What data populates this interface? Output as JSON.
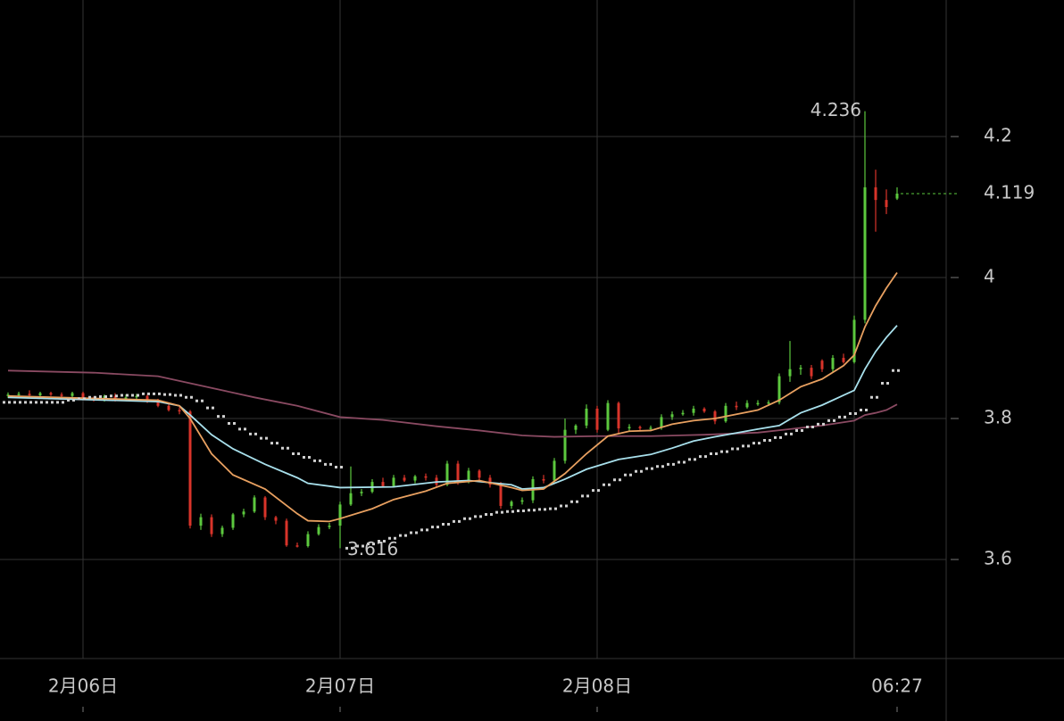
{
  "chart_data": {
    "type": "candlestick",
    "categories": [
      null,
      null,
      null,
      null,
      null,
      null,
      null,
      "2月06日",
      null,
      null,
      null,
      null,
      null,
      null,
      null,
      null,
      null,
      null,
      null,
      null,
      null,
      null,
      null,
      null,
      null,
      null,
      null,
      null,
      null,
      null,
      null,
      "2月07日",
      null,
      null,
      null,
      null,
      null,
      null,
      null,
      null,
      null,
      null,
      null,
      null,
      null,
      null,
      null,
      null,
      null,
      null,
      null,
      null,
      null,
      null,
      null,
      "2月08日",
      null,
      null,
      null,
      null,
      null,
      null,
      null,
      null,
      null,
      null,
      null,
      null,
      null,
      null,
      null,
      null,
      null,
      null,
      null,
      null,
      null,
      null,
      null,
      null,
      null,
      null,
      null,
      "06:27"
    ],
    "open": [
      3.832,
      3.834,
      3.835,
      3.833,
      3.836,
      3.834,
      3.832,
      3.836,
      3.828,
      3.826,
      3.832,
      3.827,
      3.83,
      3.832,
      3.824,
      3.818,
      3.812,
      3.81,
      3.648,
      3.66,
      3.636,
      3.645,
      3.664,
      3.668,
      3.688,
      3.66,
      3.655,
      3.62,
      3.619,
      3.636,
      3.646,
      3.648,
      3.678,
      3.694,
      3.696,
      3.71,
      3.704,
      3.716,
      3.712,
      3.718,
      3.716,
      3.706,
      3.736,
      3.71,
      3.726,
      3.716,
      3.706,
      3.676,
      3.682,
      3.684,
      3.714,
      3.712,
      3.74,
      3.784,
      3.79,
      3.814,
      3.784,
      3.822,
      3.786,
      3.788,
      3.786,
      3.787,
      3.802,
      3.806,
      3.808,
      3.814,
      3.81,
      3.796,
      3.818,
      3.816,
      3.822,
      3.822,
      3.823,
      3.86,
      3.87,
      3.872,
      3.882,
      3.87,
      3.886,
      3.88,
      3.94,
      4.128,
      4.11,
      4.112
    ],
    "high": [
      3.837,
      3.838,
      3.84,
      3.838,
      3.838,
      3.837,
      3.838,
      3.838,
      3.831,
      3.834,
      3.836,
      3.834,
      3.835,
      3.834,
      3.828,
      3.822,
      3.816,
      3.812,
      3.665,
      3.664,
      3.648,
      3.666,
      3.672,
      3.691,
      3.69,
      3.662,
      3.658,
      3.624,
      3.64,
      3.65,
      3.652,
      3.682,
      3.732,
      3.7,
      3.714,
      3.716,
      3.72,
      3.72,
      3.72,
      3.722,
      3.72,
      3.74,
      3.74,
      3.73,
      3.728,
      3.72,
      3.71,
      3.684,
      3.688,
      3.718,
      3.72,
      3.744,
      3.8,
      3.792,
      3.82,
      3.818,
      3.826,
      3.824,
      3.792,
      3.79,
      3.79,
      3.806,
      3.81,
      3.812,
      3.818,
      3.816,
      3.812,
      3.822,
      3.824,
      3.826,
      3.826,
      3.826,
      3.864,
      3.91,
      3.876,
      3.876,
      3.884,
      3.89,
      3.892,
      3.946,
      4.236,
      4.153,
      4.125,
      4.128
    ],
    "low": [
      3.829,
      3.831,
      3.832,
      3.83,
      3.832,
      3.828,
      3.83,
      3.826,
      3.824,
      3.824,
      3.824,
      3.825,
      3.826,
      3.822,
      3.816,
      3.81,
      3.806,
      3.644,
      3.642,
      3.632,
      3.632,
      3.642,
      3.66,
      3.666,
      3.656,
      3.65,
      3.618,
      3.617,
      3.617,
      3.634,
      3.643,
      3.616,
      3.676,
      3.69,
      3.694,
      3.702,
      3.702,
      3.71,
      3.708,
      3.712,
      3.702,
      3.704,
      3.706,
      3.708,
      3.712,
      3.702,
      3.672,
      3.672,
      3.678,
      3.68,
      3.708,
      3.708,
      3.736,
      3.778,
      3.786,
      3.78,
      3.782,
      3.778,
      3.782,
      3.782,
      3.782,
      3.784,
      3.798,
      3.804,
      3.804,
      3.808,
      3.792,
      3.794,
      3.812,
      3.814,
      3.818,
      3.818,
      3.82,
      3.852,
      3.862,
      3.856,
      3.866,
      3.866,
      3.878,
      3.878,
      3.935,
      4.065,
      4.09,
      4.11
    ],
    "close": [
      3.834,
      3.835,
      3.833,
      3.836,
      3.834,
      3.832,
      3.836,
      3.828,
      3.826,
      3.832,
      3.827,
      3.83,
      3.832,
      3.824,
      3.818,
      3.812,
      3.81,
      3.648,
      3.66,
      3.636,
      3.645,
      3.664,
      3.668,
      3.688,
      3.66,
      3.655,
      3.62,
      3.619,
      3.636,
      3.646,
      3.648,
      3.678,
      3.694,
      3.696,
      3.71,
      3.704,
      3.716,
      3.712,
      3.718,
      3.716,
      3.706,
      3.736,
      3.71,
      3.726,
      3.716,
      3.706,
      3.676,
      3.682,
      3.684,
      3.714,
      3.712,
      3.74,
      3.784,
      3.79,
      3.814,
      3.784,
      3.822,
      3.786,
      3.788,
      3.786,
      3.787,
      3.802,
      3.806,
      3.808,
      3.814,
      3.81,
      3.796,
      3.818,
      3.816,
      3.822,
      3.822,
      3.823,
      3.86,
      3.87,
      3.872,
      3.86,
      3.87,
      3.886,
      3.88,
      3.94,
      4.128,
      4.11,
      4.1,
      4.119
    ],
    "up_color": "#5cc83e",
    "down_color": "#d8342a",
    "overlays": [
      {
        "color": "#8a4a62",
        "x": [
          0,
          8,
          14,
          17,
          20,
          23,
          27,
          31,
          35,
          40,
          44,
          48,
          51,
          55,
          60,
          65,
          70,
          73,
          76,
          79,
          80,
          81,
          82,
          83
        ],
        "values": [
          3.868,
          3.865,
          3.86,
          3.85,
          3.84,
          3.83,
          3.818,
          3.802,
          3.798,
          3.789,
          3.783,
          3.776,
          3.774,
          3.775,
          3.775,
          3.777,
          3.78,
          3.785,
          3.79,
          3.797,
          3.805,
          3.808,
          3.812,
          3.82
        ]
      },
      {
        "color": "#a8e0ec",
        "x": [
          0,
          14,
          16,
          17,
          19,
          21,
          24,
          27,
          28,
          31,
          36,
          40,
          43,
          47,
          48,
          50,
          52,
          54,
          57,
          60,
          62,
          64,
          66,
          70,
          72,
          74,
          76,
          78,
          79,
          80,
          81,
          82,
          83
        ],
        "values": [
          3.83,
          3.824,
          3.818,
          3.805,
          3.777,
          3.757,
          3.735,
          3.716,
          3.708,
          3.702,
          3.703,
          3.71,
          3.712,
          3.706,
          3.7,
          3.702,
          3.714,
          3.728,
          3.742,
          3.749,
          3.758,
          3.768,
          3.774,
          3.785,
          3.79,
          3.808,
          3.819,
          3.833,
          3.84,
          3.87,
          3.895,
          3.915,
          3.932
        ]
      },
      {
        "color": "#e8a060",
        "x": [
          0,
          14,
          16,
          17,
          19,
          21,
          24,
          27,
          28,
          30,
          31,
          34,
          36,
          39,
          41,
          44,
          47,
          48,
          50,
          52,
          54,
          56,
          58,
          60,
          62,
          64,
          66,
          70,
          72,
          74,
          76,
          78,
          79,
          80,
          81,
          82,
          83
        ],
        "values": [
          3.832,
          3.826,
          3.818,
          3.8,
          3.75,
          3.72,
          3.7,
          3.665,
          3.655,
          3.654,
          3.658,
          3.672,
          3.685,
          3.697,
          3.708,
          3.712,
          3.702,
          3.698,
          3.7,
          3.722,
          3.75,
          3.775,
          3.782,
          3.783,
          3.792,
          3.797,
          3.8,
          3.812,
          3.826,
          3.845,
          3.856,
          3.875,
          3.89,
          3.93,
          3.96,
          3.985,
          4.007
        ]
      }
    ],
    "sar": {
      "color": "#d0d0d0",
      "values": [
        3.823,
        3.823,
        3.823,
        3.823,
        3.823,
        3.823,
        3.826,
        3.828,
        3.83,
        3.831,
        3.832,
        3.833,
        3.833,
        3.835,
        3.835,
        3.834,
        3.833,
        3.83,
        3.825,
        3.815,
        3.803,
        3.793,
        3.785,
        3.778,
        3.772,
        3.765,
        3.758,
        3.75,
        3.745,
        3.74,
        3.735,
        3.731,
        3.616,
        3.619,
        3.622,
        3.626,
        3.63,
        3.634,
        3.638,
        3.642,
        3.646,
        3.65,
        3.654,
        3.658,
        3.661,
        3.664,
        3.667,
        3.668,
        3.669,
        3.67,
        3.671,
        3.672,
        3.676,
        3.682,
        3.69,
        3.698,
        3.706,
        3.713,
        3.72,
        3.725,
        3.729,
        3.732,
        3.735,
        3.738,
        3.742,
        3.746,
        3.75,
        3.753,
        3.757,
        3.761,
        3.765,
        3.769,
        3.773,
        3.778,
        3.783,
        3.788,
        3.792,
        3.797,
        3.802,
        3.807,
        3.812,
        3.83,
        3.85,
        3.868
      ]
    },
    "high_label": 4.236,
    "low_label": 3.616,
    "last_price": 4.119,
    "ylim": [
      3.4595,
      4.3937
    ],
    "yticks": [
      3.6,
      3.8,
      4,
      4.2
    ],
    "grid": true
  }
}
